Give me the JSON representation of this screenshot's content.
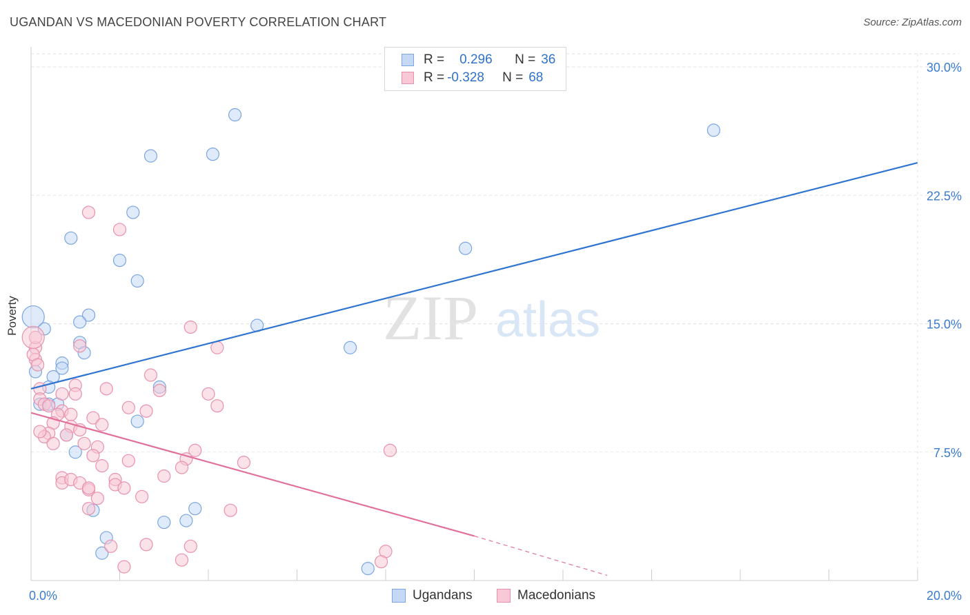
{
  "title": "UGANDAN VS MACEDONIAN POVERTY CORRELATION CHART",
  "source": "Source: ZipAtlas.com",
  "watermark": {
    "zip": "ZIP",
    "atlas": "atlas"
  },
  "legend_top": {
    "r_label": "R =",
    "n_label": "N =",
    "rows": [
      {
        "r": "0.296",
        "n": "36"
      },
      {
        "r": "-0.328",
        "n": "68"
      }
    ]
  },
  "legend_bottom": [
    "Ugandans",
    "Macedonians"
  ],
  "colors": {
    "ugandans_fill": "#c5d9f5",
    "ugandans_stroke": "#7aa5e0",
    "ugandans_line": "#2f74d0",
    "macedonians_fill": "#f8c8d6",
    "macedonians_stroke": "#e891ad",
    "macedonians_line": "#e0709a",
    "tick_text": "#3a7bd0"
  },
  "chart_data": {
    "type": "scatter",
    "xlabel": "",
    "ylabel": "Poverty",
    "xlim": [
      0,
      20
    ],
    "ylim": [
      0,
      30
    ],
    "x_tick_labels": [
      {
        "value": 0,
        "label": "0.0%"
      },
      {
        "value": 20,
        "label": "20.0%"
      }
    ],
    "y_tick_labels": [
      {
        "value": 7.5,
        "label": "7.5%"
      },
      {
        "value": 15,
        "label": "15.0%"
      },
      {
        "value": 22.5,
        "label": "22.5%"
      },
      {
        "value": 30,
        "label": "30.0%"
      }
    ],
    "grid": true,
    "legend_position": "top-center",
    "series": [
      {
        "name": "Ugandans",
        "points": [
          [
            4.6,
            27.2
          ],
          [
            15.4,
            26.3
          ],
          [
            2.7,
            24.8
          ],
          [
            4.1,
            24.9
          ],
          [
            2.3,
            21.5
          ],
          [
            0.9,
            20.0
          ],
          [
            2.0,
            18.7
          ],
          [
            9.8,
            19.4
          ],
          [
            2.4,
            17.5
          ],
          [
            1.3,
            15.5
          ],
          [
            1.1,
            15.1
          ],
          [
            0.3,
            14.7
          ],
          [
            5.1,
            14.9
          ],
          [
            1.1,
            13.9
          ],
          [
            1.2,
            13.3
          ],
          [
            7.2,
            13.6
          ],
          [
            0.7,
            12.7
          ],
          [
            0.7,
            12.4
          ],
          [
            0.1,
            12.2
          ],
          [
            0.5,
            11.9
          ],
          [
            0.4,
            11.3
          ],
          [
            2.9,
            11.3
          ],
          [
            0.2,
            10.3
          ],
          [
            0.4,
            10.3
          ],
          [
            0.6,
            10.3
          ],
          [
            2.4,
            9.3
          ],
          [
            0.8,
            8.5
          ],
          [
            1.0,
            7.5
          ],
          [
            1.4,
            4.1
          ],
          [
            3.0,
            3.4
          ],
          [
            3.5,
            3.5
          ],
          [
            3.7,
            4.2
          ],
          [
            1.7,
            2.5
          ],
          [
            1.6,
            1.6
          ],
          [
            7.6,
            0.7
          ],
          [
            0.05,
            15.4
          ]
        ]
      },
      {
        "name": "Macedonians",
        "points": [
          [
            1.3,
            21.5
          ],
          [
            2.0,
            20.5
          ],
          [
            3.6,
            14.8
          ],
          [
            4.2,
            13.6
          ],
          [
            1.1,
            13.7
          ],
          [
            0.1,
            13.6
          ],
          [
            0.1,
            12.9
          ],
          [
            2.7,
            12.0
          ],
          [
            1.0,
            11.4
          ],
          [
            0.2,
            11.2
          ],
          [
            1.7,
            11.2
          ],
          [
            2.9,
            11.1
          ],
          [
            1.0,
            10.9
          ],
          [
            4.0,
            10.9
          ],
          [
            0.7,
            10.9
          ],
          [
            0.2,
            10.6
          ],
          [
            0.3,
            10.3
          ],
          [
            0.4,
            10.2
          ],
          [
            2.2,
            10.1
          ],
          [
            4.2,
            10.2
          ],
          [
            2.6,
            9.9
          ],
          [
            0.7,
            9.9
          ],
          [
            0.6,
            9.7
          ],
          [
            0.9,
            9.7
          ],
          [
            1.4,
            9.5
          ],
          [
            0.5,
            9.2
          ],
          [
            1.6,
            9.1
          ],
          [
            0.9,
            9.0
          ],
          [
            1.1,
            8.8
          ],
          [
            0.4,
            8.6
          ],
          [
            0.3,
            8.4
          ],
          [
            0.8,
            8.5
          ],
          [
            1.2,
            8.0
          ],
          [
            0.5,
            8.0
          ],
          [
            1.5,
            7.8
          ],
          [
            3.7,
            7.6
          ],
          [
            8.1,
            7.6
          ],
          [
            1.4,
            7.3
          ],
          [
            3.5,
            7.1
          ],
          [
            2.2,
            7.0
          ],
          [
            4.8,
            6.9
          ],
          [
            1.6,
            6.7
          ],
          [
            3.4,
            6.6
          ],
          [
            3.0,
            6.1
          ],
          [
            0.7,
            6.0
          ],
          [
            1.9,
            5.9
          ],
          [
            1.9,
            5.6
          ],
          [
            0.7,
            5.7
          ],
          [
            0.9,
            5.9
          ],
          [
            1.1,
            5.7
          ],
          [
            2.1,
            5.4
          ],
          [
            1.3,
            5.3
          ],
          [
            1.3,
            5.4
          ],
          [
            2.5,
            4.9
          ],
          [
            1.5,
            4.8
          ],
          [
            1.3,
            4.2
          ],
          [
            4.5,
            4.1
          ],
          [
            1.8,
            2.0
          ],
          [
            2.6,
            2.1
          ],
          [
            3.6,
            2.0
          ],
          [
            8.0,
            1.7
          ],
          [
            7.9,
            1.1
          ],
          [
            3.4,
            1.2
          ],
          [
            2.1,
            0.8
          ],
          [
            0.1,
            14.2
          ],
          [
            0.05,
            13.2
          ],
          [
            0.2,
            8.7
          ],
          [
            0.15,
            12.6
          ]
        ]
      }
    ],
    "trend_lines": [
      {
        "series": "Ugandans",
        "from": [
          0,
          11.2
        ],
        "to": [
          20,
          24.4
        ]
      },
      {
        "series": "Macedonians",
        "from": [
          0,
          9.8
        ],
        "to": [
          10,
          2.6
        ],
        "dashed_to": [
          13,
          0.3
        ]
      }
    ]
  }
}
